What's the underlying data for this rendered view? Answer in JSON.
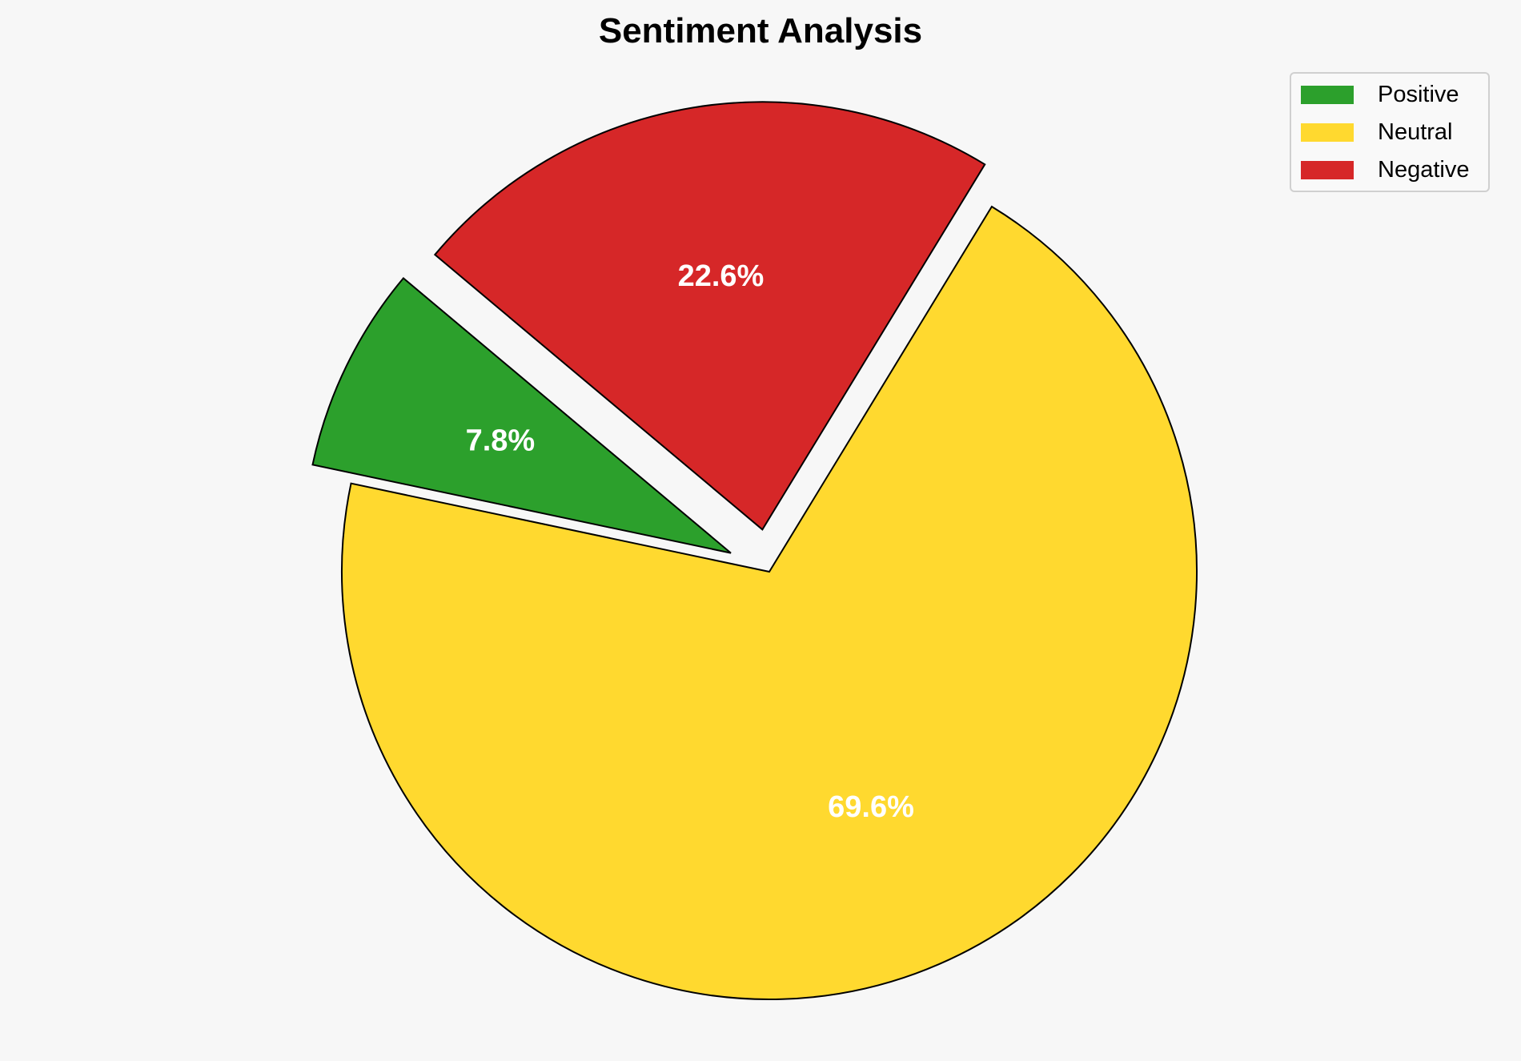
{
  "chart_data": {
    "type": "pie",
    "title": "Sentiment Analysis",
    "categories": [
      "Positive",
      "Neutral",
      "Negative"
    ],
    "values": [
      7.8,
      69.6,
      22.6
    ],
    "labels": [
      "7.8%",
      "69.6%",
      "22.6%"
    ],
    "colors": [
      "#2ca02c",
      "#ffd92f",
      "#d62728"
    ],
    "explode": [
      0.1,
      0,
      0.1
    ],
    "start_angle": 140,
    "legend_position": "top-right",
    "edge_color": "#000000"
  }
}
